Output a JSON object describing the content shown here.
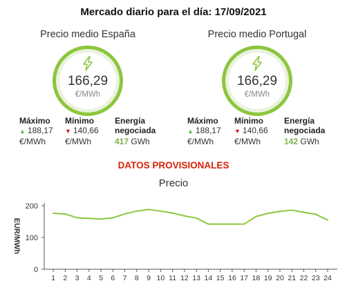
{
  "header": {
    "title": "Mercado diario para el día: 17/09/2021"
  },
  "spain": {
    "label": "Precio medio España",
    "price": "166,29",
    "unit": "€/MWh",
    "max_label": "Máximo",
    "max_value": "188,17",
    "max_unit": "€/MWh",
    "min_label": "Mínimo",
    "min_value": "140,66",
    "min_unit": "€/MWh",
    "energy_label_1": "Energía",
    "energy_label_2": "negociada",
    "energy_value": "417",
    "energy_unit": "GWh"
  },
  "portugal": {
    "label": "Precio medio Portugal",
    "price": "166,29",
    "unit": "€/MWh",
    "max_label": "Máximo",
    "max_value": "188,17",
    "max_unit": "€/MWh",
    "min_label": "Mínimo",
    "min_value": "140,66",
    "min_unit": "€/MWh",
    "energy_label_1": "Energía",
    "energy_label_2": "negociada",
    "energy_value": "142",
    "energy_unit": "GWh"
  },
  "notice": "DATOS PROVISIONALES",
  "colors": {
    "accent_green": "#8cc63f",
    "alert_red": "#d81e05",
    "line": "#8cc63f"
  },
  "icons": {
    "ring_icon": "lightning-bolt-icon",
    "max_icon": "triangle-up-icon",
    "min_icon": "triangle-down-icon"
  },
  "chart_data": {
    "type": "line",
    "title": "Precio",
    "xlabel": "",
    "ylabel": "EUR/MWh",
    "x": [
      1,
      2,
      3,
      4,
      5,
      6,
      7,
      8,
      9,
      10,
      11,
      12,
      13,
      14,
      15,
      16,
      17,
      18,
      19,
      20,
      21,
      22,
      23,
      24
    ],
    "y_ticks": [
      0,
      100,
      200
    ],
    "ylim": [
      0,
      200
    ],
    "grid": false,
    "series": [
      {
        "values": [
          176,
          174,
          162,
          160,
          158,
          162,
          174,
          183,
          188,
          183,
          177,
          168,
          161,
          142,
          142,
          142,
          142,
          166,
          176,
          182,
          186,
          179,
          173,
          155
        ]
      }
    ]
  }
}
